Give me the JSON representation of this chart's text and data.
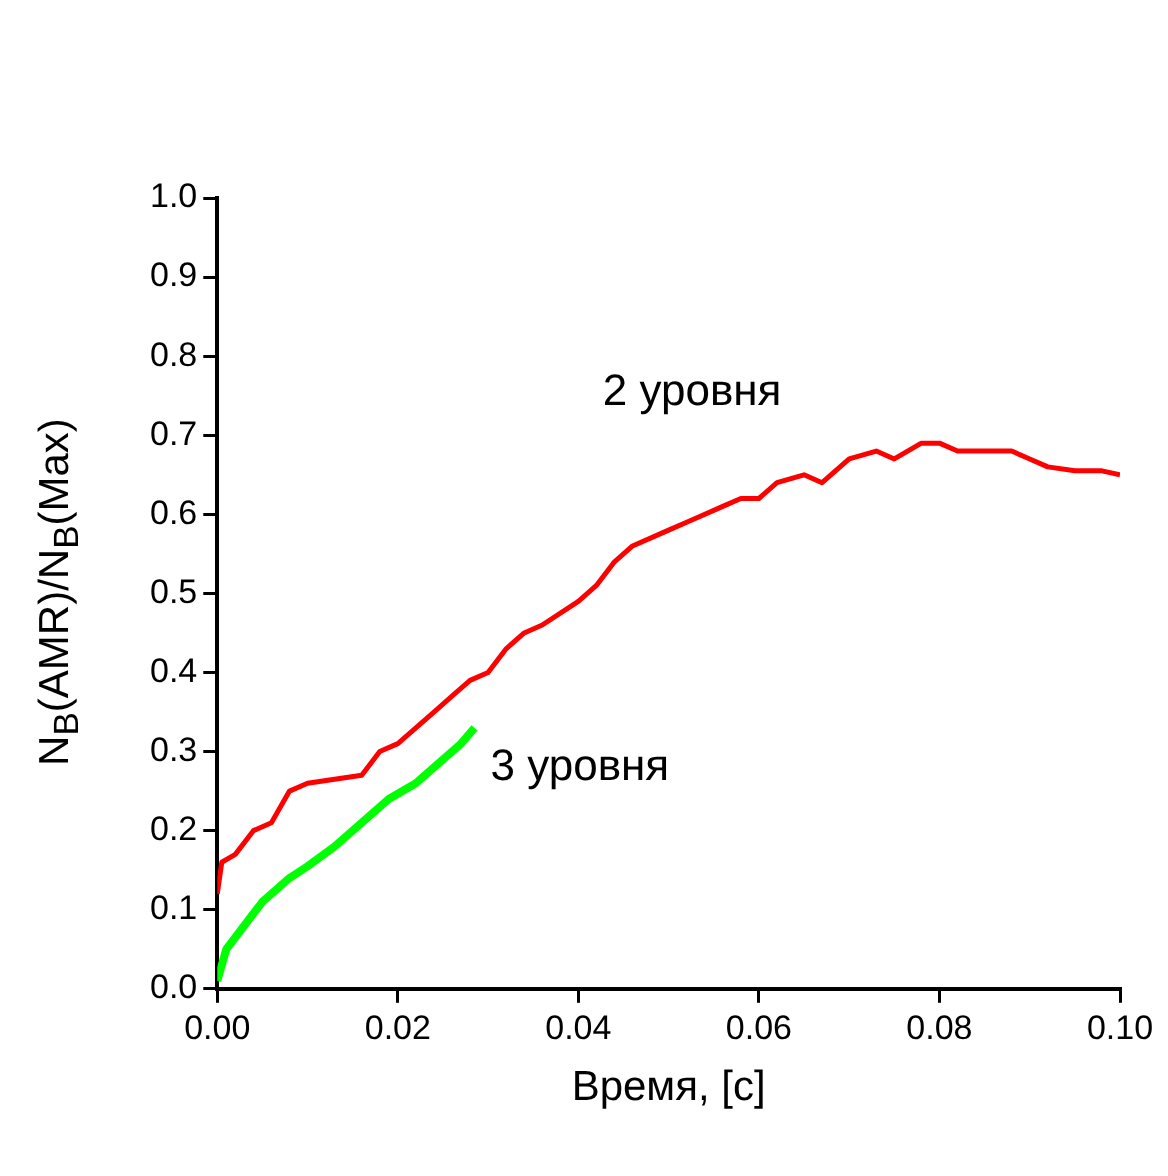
{
  "chart_data": {
    "type": "line",
    "xlabel": "Время, [с]",
    "ylabel": "N$_{B}$(AMR)/N$_{B}$(Max)",
    "xlim": [
      0,
      0.1
    ],
    "xticks": [
      {
        "value": 0,
        "label": "0.00"
      },
      {
        "value": 0.02,
        "label": "0.02"
      },
      {
        "value": 0.04,
        "label": "0.04"
      },
      {
        "value": 0.06,
        "label": "0.06"
      },
      {
        "value": 0.08,
        "label": "0.08"
      },
      {
        "value": 0.1,
        "label": "0.10"
      }
    ],
    "ylim": [
      0,
      1
    ],
    "yticks": [
      {
        "value": 0,
        "label": "0.0"
      },
      {
        "value": 0.1,
        "label": "0.1"
      },
      {
        "value": 0.2,
        "label": "0.2"
      },
      {
        "value": 0.3,
        "label": "0.3"
      },
      {
        "value": 0.4,
        "label": "0.4"
      },
      {
        "value": 0.5,
        "label": "0.5"
      },
      {
        "value": 0.6,
        "label": "0.6"
      },
      {
        "value": 0.7,
        "label": "0.7"
      },
      {
        "value": 0.8,
        "label": "0.8"
      },
      {
        "value": 0.9,
        "label": "0.9"
      },
      {
        "value": 1,
        "label": "1.0"
      }
    ],
    "grid": false,
    "legend": false,
    "marker": "none",
    "line_style": "solid",
    "series": [
      {
        "name": "2 уровня",
        "color": "#ff0000",
        "x": [
          0,
          0.0005,
          0.002,
          0.004,
          0.006,
          0.008,
          0.01,
          0.013,
          0.016,
          0.018,
          0.02,
          0.022,
          0.024,
          0.026,
          0.028,
          0.03,
          0.032,
          0.034,
          0.036,
          0.04,
          0.042,
          0.044,
          0.046,
          0.05,
          0.052,
          0.056,
          0.058,
          0.06,
          0.062,
          0.065,
          0.067,
          0.07,
          0.073,
          0.075,
          0.078,
          0.08,
          0.082,
          0.085,
          0.088,
          0.09,
          0.092,
          0.095,
          0.098,
          0.1
        ],
        "values": [
          0.12,
          0.16,
          0.17,
          0.2,
          0.21,
          0.25,
          0.26,
          0.265,
          0.27,
          0.3,
          0.31,
          0.33,
          0.35,
          0.37,
          0.39,
          0.4,
          0.43,
          0.45,
          0.46,
          0.49,
          0.51,
          0.54,
          0.56,
          0.58,
          0.59,
          0.61,
          0.62,
          0.62,
          0.64,
          0.65,
          0.64,
          0.67,
          0.68,
          0.67,
          0.69,
          0.69,
          0.68,
          0.68,
          0.68,
          0.67,
          0.66,
          0.655,
          0.655,
          0.65
        ]
      },
      {
        "name": "3 уровня",
        "color": "#00ff00",
        "x": [
          0,
          0.001,
          0.003,
          0.005,
          0.008,
          0.01,
          0.013,
          0.016,
          0.019,
          0.022,
          0.025,
          0.027,
          0.0285
        ],
        "values": [
          0.01,
          0.05,
          0.08,
          0.11,
          0.14,
          0.155,
          0.18,
          0.21,
          0.24,
          0.26,
          0.29,
          0.31,
          0.33
        ]
      }
    ]
  }
}
